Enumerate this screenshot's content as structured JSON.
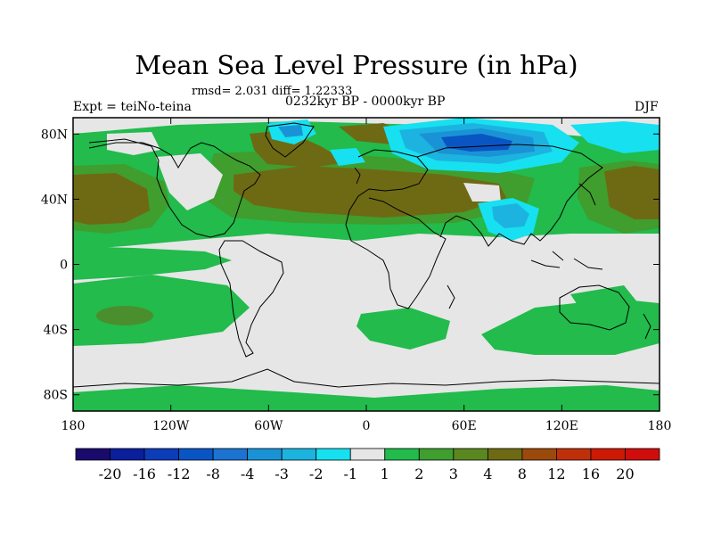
{
  "title": "Mean Sea Level Pressure (in hPa)",
  "stats": "rmsd= 2.031 diff= 1.22333",
  "experiment": "Expt = teiNo-teina",
  "period": "0232kyr BP - 0000kyr BP",
  "season": "DJF",
  "lat_labels": [
    "80N",
    "40N",
    "0",
    "40S",
    "80S"
  ],
  "lon_labels": [
    "180",
    "120W",
    "60W",
    "0",
    "60E",
    "120E",
    "180"
  ],
  "colorbar": {
    "labels": [
      "-20",
      "-16",
      "-12",
      "-8",
      "-4",
      "-3",
      "-2",
      "-1",
      "1",
      "2",
      "3",
      "4",
      "8",
      "12",
      "16",
      "20"
    ],
    "colors": [
      "#1a0a6e",
      "#0b1f9c",
      "#0d3cb8",
      "#0a55c4",
      "#1c73d1",
      "#1a93d6",
      "#1db3e0",
      "#17e0f0",
      "#e6e6e6",
      "#22bb4c",
      "#3f9e2e",
      "#5a8720",
      "#6e6a14",
      "#9b4a0c",
      "#bf300a",
      "#cc1a05",
      "#d00d0d"
    ]
  }
}
